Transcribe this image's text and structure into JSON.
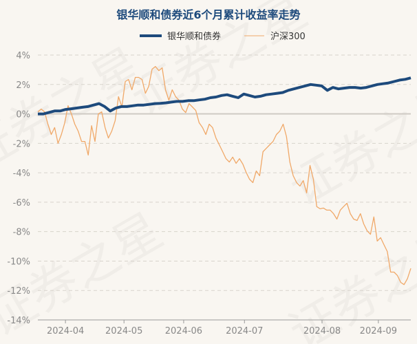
{
  "chart_data": {
    "type": "line",
    "title": "银华顺和债券近6个月累计收益率走势",
    "xlabel": "",
    "ylabel": "",
    "ylim": [
      -14,
      4
    ],
    "yticks": [
      4,
      2,
      0,
      -2,
      -4,
      -6,
      -8,
      -10,
      -12,
      -14
    ],
    "ytick_labels": [
      "4%",
      "2%",
      "0%",
      "-2%",
      "-4%",
      "-6%",
      "-8%",
      "-10%",
      "-12%",
      "-14%"
    ],
    "xtick_labels": [
      "2024-04",
      "2024-05",
      "2024-06",
      "2024-07",
      "2024-08",
      "2024-09"
    ],
    "xtick_pos": [
      0.074,
      0.231,
      0.391,
      0.554,
      0.762,
      0.913
    ],
    "grid": true,
    "legend_position": "top-center",
    "watermark": "证券之星",
    "series": [
      {
        "name": "银华顺和债券",
        "color": "#1d4a7c",
        "values": [
          0,
          0,
          0.1,
          0.2,
          0.2,
          0.3,
          0.35,
          0.4,
          0.45,
          0.5,
          0.6,
          0.7,
          0.5,
          0.2,
          0.4,
          0.5,
          0.5,
          0.55,
          0.6,
          0.6,
          0.65,
          0.7,
          0.72,
          0.75,
          0.8,
          0.85,
          0.85,
          0.9,
          0.9,
          0.95,
          1.0,
          1.1,
          1.15,
          1.25,
          1.3,
          1.2,
          1.1,
          1.35,
          1.25,
          1.15,
          1.2,
          1.3,
          1.35,
          1.4,
          1.45,
          1.6,
          1.7,
          1.8,
          1.9,
          2.0,
          1.95,
          1.9,
          1.6,
          1.8,
          1.7,
          1.75,
          1.8,
          1.8,
          1.75,
          1.8,
          1.9,
          2.0,
          2.05,
          2.1,
          2.2,
          2.3,
          2.35,
          2.45
        ]
      },
      {
        "name": "沪深300",
        "color": "#f0a868",
        "values": [
          0.14,
          0.33,
          0.14,
          -0.7,
          -1.4,
          -0.93,
          -2.0,
          -1.4,
          -0.6,
          0.56,
          0,
          -0.7,
          -1.17,
          -1.87,
          -1.87,
          -2.8,
          -0.8,
          -1.87,
          0,
          0.14,
          -0.93,
          -1.64,
          -1.17,
          -0.47,
          1.17,
          0.47,
          2.2,
          2.34,
          1.64,
          2.48,
          2.48,
          2.34,
          1.4,
          1.87,
          3.04,
          3.22,
          2.94,
          3.13,
          1.64,
          0.93,
          1.64,
          1.17,
          0.93,
          0.33,
          0.09,
          0.7,
          0.47,
          0.23,
          -0.6,
          -0.93,
          -1.4,
          -0.7,
          -0.93,
          -1.64,
          -2.1,
          -2.57,
          -3.04,
          -3.27,
          -2.94,
          -3.36,
          -3.04,
          -3.41,
          -3.97,
          -4.44,
          -4.67,
          -3.88,
          -4.2,
          -2.57,
          -2.34,
          -2.1,
          -1.87,
          -1.4,
          -1.17,
          -0.7,
          -1.54,
          -3.27,
          -4.2,
          -4.67,
          -4.9,
          -4.53,
          -5.37,
          -3.5,
          -4.44,
          -6.3,
          -6.45,
          -6.4,
          -6.54,
          -6.54,
          -6.78,
          -7.15,
          -6.54,
          -6.3,
          -6.07,
          -6.78,
          -7.15,
          -7.24,
          -6.78,
          -7.48,
          -7.94,
          -8.18,
          -7.0,
          -8.64,
          -8.41,
          -8.88,
          -9.35,
          -10.75,
          -10.75,
          -10.98,
          -11.45,
          -11.6,
          -11.2,
          -10.5
        ]
      }
    ]
  }
}
